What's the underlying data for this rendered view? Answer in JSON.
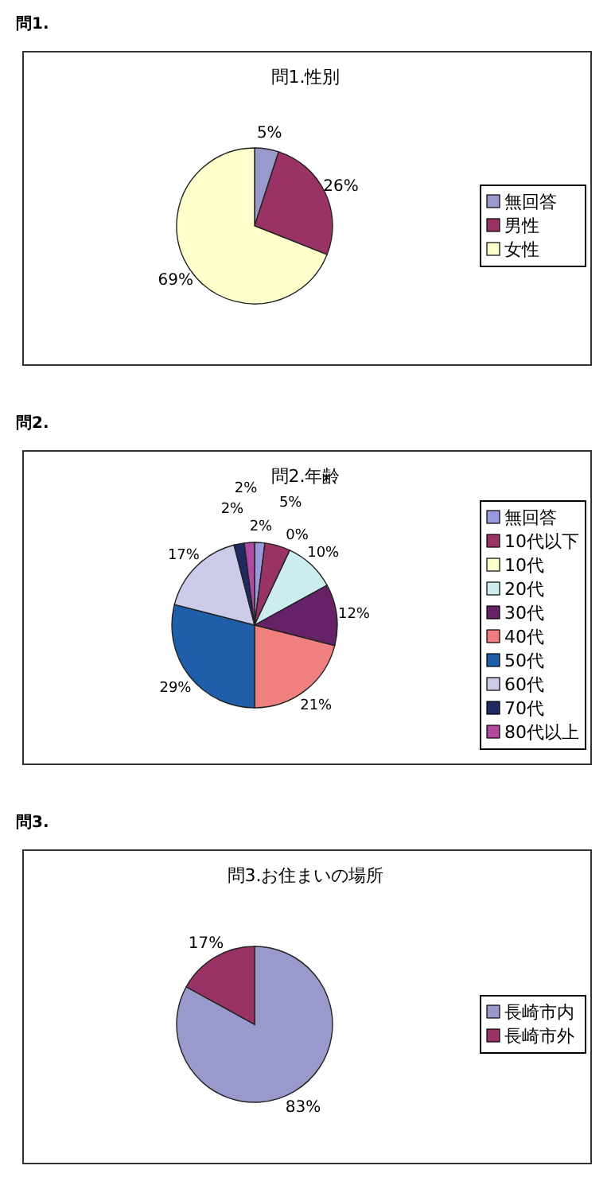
{
  "chart_data": [
    {
      "type": "pie",
      "title": "問1.性別",
      "annotations": [
        "問1."
      ],
      "categories": [
        "無回答",
        "男性",
        "女性"
      ],
      "values": [
        5,
        26,
        69
      ],
      "colors": [
        "#9999cc",
        "#993366",
        "#ffffcc"
      ],
      "value_labels": [
        "5%",
        "26%",
        "69%"
      ],
      "legend": "right"
    },
    {
      "type": "pie",
      "title": "問2.年齢",
      "annotations": [
        "問2."
      ],
      "categories": [
        "無回答",
        "10代以下",
        "10代",
        "20代",
        "30代",
        "40代",
        "50代",
        "60代",
        "70代",
        "80代以上"
      ],
      "values": [
        2,
        5,
        0,
        10,
        12,
        21,
        29,
        17,
        2,
        2
      ],
      "colors": [
        "#9999dd",
        "#993366",
        "#ffffcc",
        "#ccecf0",
        "#662266",
        "#f08080",
        "#1f5faa",
        "#ccccea",
        "#1f2a60",
        "#b04aa0"
      ],
      "value_labels": [
        "2%",
        "5%",
        "0%",
        "10%",
        "12%",
        "21%",
        "29%",
        "17%",
        "2%",
        "2%"
      ],
      "legend": "right"
    },
    {
      "type": "pie",
      "title": "問3.お住まいの場所",
      "annotations": [
        "問3."
      ],
      "categories": [
        "長崎市内",
        "長崎市外"
      ],
      "values": [
        83,
        17
      ],
      "colors": [
        "#9999cc",
        "#993366"
      ],
      "value_labels": [
        "83%",
        "17%"
      ],
      "legend": "right"
    }
  ]
}
